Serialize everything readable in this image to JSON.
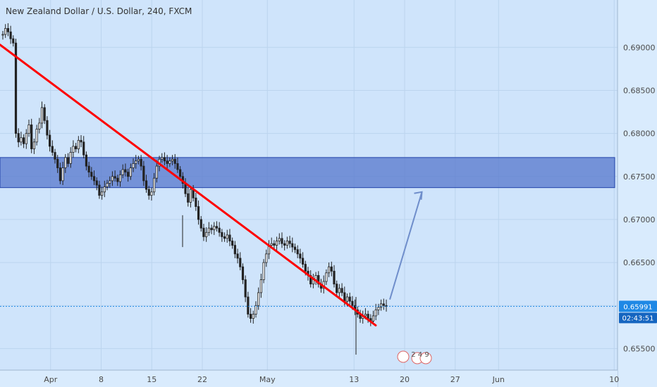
{
  "chart_data": {
    "type": "candlestick",
    "title": "New Zealand Dollar / U.S. Dollar, 240, FXCM",
    "x_labels": [
      "Apr",
      "8",
      "15",
      "22",
      "May",
      "13",
      "20",
      "27",
      "Jun",
      "10"
    ],
    "y_ticks": [
      "0.69000",
      "0.68500",
      "0.68000",
      "0.67500",
      "0.67000",
      "0.66500",
      "0.66000",
      "0.65500"
    ],
    "ylim": [
      0.6525,
      0.6955
    ],
    "last_price": "0.65991",
    "countdown": "02:43:51",
    "resistance_zone": [
      0.6737,
      0.6772
    ],
    "trendline": {
      "from": {
        "date": "Mar 25",
        "price": 0.6903
      },
      "to": {
        "date": "May 16",
        "price": 0.6577
      }
    },
    "projection_arrow": {
      "from": {
        "date": "May 13",
        "price": 0.6607
      },
      "to": {
        "date": "May 22",
        "price": 0.6732
      }
    },
    "events_badge": "2 4 9",
    "closes": [
      0.6915,
      0.6922,
      0.6918,
      0.691,
      0.6905,
      0.68,
      0.679,
      0.6795,
      0.6788,
      0.68,
      0.681,
      0.6782,
      0.679,
      0.6805,
      0.6812,
      0.683,
      0.6815,
      0.6798,
      0.6785,
      0.6778,
      0.677,
      0.676,
      0.6745,
      0.676,
      0.6772,
      0.6765,
      0.6778,
      0.6785,
      0.6782,
      0.6792,
      0.679,
      0.6775,
      0.6762,
      0.6755,
      0.675,
      0.6745,
      0.674,
      0.6728,
      0.6732,
      0.6738,
      0.6742,
      0.6745,
      0.675,
      0.6748,
      0.6744,
      0.6752,
      0.6758,
      0.6755,
      0.675,
      0.676,
      0.6765,
      0.6768,
      0.677,
      0.6762,
      0.6745,
      0.6735,
      0.6728,
      0.6732,
      0.6748,
      0.6762,
      0.677,
      0.6772,
      0.6768,
      0.6765,
      0.6768,
      0.677,
      0.6765,
      0.6758,
      0.675,
      0.6742,
      0.673,
      0.672,
      0.6735,
      0.6725,
      0.6715,
      0.67,
      0.669,
      0.668,
      0.6685,
      0.669,
      0.6688,
      0.6692,
      0.669,
      0.6685,
      0.668,
      0.6678,
      0.6682,
      0.6675,
      0.667,
      0.666,
      0.6655,
      0.6645,
      0.663,
      0.661,
      0.659,
      0.6585,
      0.659,
      0.66,
      0.6615,
      0.663,
      0.665,
      0.666,
      0.667,
      0.6672,
      0.667,
      0.6675,
      0.6678,
      0.6672,
      0.667,
      0.6675,
      0.6672,
      0.6668,
      0.6665,
      0.666,
      0.6655,
      0.6648,
      0.664,
      0.6635,
      0.6625,
      0.663,
      0.6635,
      0.6625,
      0.662,
      0.6628,
      0.6638,
      0.6645,
      0.664,
      0.6625,
      0.6615,
      0.662,
      0.6615,
      0.6605,
      0.661,
      0.6605,
      0.66,
      0.6595,
      0.659,
      0.6585,
      0.6588,
      0.659,
      0.6585,
      0.6582,
      0.6588,
      0.6595,
      0.6598,
      0.6602,
      0.66,
      0.6599
    ]
  }
}
